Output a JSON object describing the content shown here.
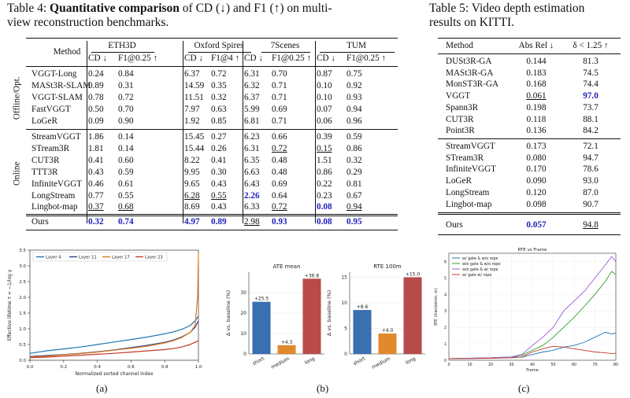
{
  "table4": {
    "caption_prefix": "Table 4: ",
    "caption_bold": "Quantitative comparison",
    "caption_rest_1": " of CD (↓) and F1 (↑) on multi-",
    "caption_rest_2": "view reconstruction benchmarks.",
    "method_header": "Method",
    "datasets": [
      "ETH3D",
      "Oxford Spires",
      "7Scenes",
      "TUM"
    ],
    "metric_cd": "CD ↓",
    "metric_f1": [
      "F1@0.25 ↑",
      "F1@4 ↑",
      "F1@0.25 ↑",
      "F1@0.25 ↑"
    ],
    "group_offline": "Offline/Opt.",
    "group_online": "Online",
    "offline_rows": [
      {
        "name": "VGGT-Long",
        "vals": [
          "0.24",
          "0.84",
          "6.37",
          "0.72",
          "6.31",
          "0.70",
          "0.87",
          "0.75"
        ]
      },
      {
        "name": "MASt3R-SLAM",
        "vals": [
          "0.89",
          "0.31",
          "14.59",
          "0.35",
          "6.32",
          "0.71",
          "0.10",
          "0.92"
        ]
      },
      {
        "name": "VGGT-SLAM",
        "vals": [
          "0.78",
          "0.72",
          "11.51",
          "0.32",
          "6.37",
          "0.71",
          "0.10",
          "0.93"
        ]
      },
      {
        "name": "FastVGGT",
        "vals": [
          "0.50",
          "0.70",
          "7.97",
          "0.63",
          "5.99",
          "0.69",
          "0.07",
          "0.94"
        ]
      },
      {
        "name": "LoGeR",
        "vals": [
          "0.09",
          "0.90",
          "1.92",
          "0.85",
          "6.81",
          "0.71",
          "0.06",
          "0.96"
        ]
      }
    ],
    "online_rows": [
      {
        "name": "StreamVGGT",
        "vals": [
          "1.86",
          "0.14",
          "15.45",
          "0.27",
          "6.23",
          "0.66",
          "0.39",
          "0.59"
        ]
      },
      {
        "name": "STream3R",
        "vals": [
          "1.81",
          "0.14",
          "15.44",
          "0.26",
          "6.31",
          "0.72",
          "0.15",
          "0.86"
        ]
      },
      {
        "name": "CUT3R",
        "vals": [
          "0.41",
          "0.60",
          "8.22",
          "0.41",
          "6.35",
          "0.48",
          "1.51",
          "0.32"
        ]
      },
      {
        "name": "TTT3R",
        "vals": [
          "0.43",
          "0.59",
          "9.95",
          "0.30",
          "6.63",
          "0.48",
          "0.86",
          "0.29"
        ]
      },
      {
        "name": "InfiniteVGGT",
        "vals": [
          "0.46",
          "0.61",
          "9.65",
          "0.43",
          "6.43",
          "0.69",
          "0.22",
          "0.81"
        ]
      },
      {
        "name": "LongStream",
        "vals": [
          "0.77",
          "0.55",
          "6.28",
          "0.55",
          "2.26",
          "0.64",
          "0.23",
          "0.67"
        ]
      },
      {
        "name": "Lingbot-map",
        "vals": [
          "0.37",
          "0.68",
          "8.69",
          "0.43",
          "6.33",
          "0.72",
          "0.08",
          "0.94"
        ]
      }
    ],
    "ours_row": {
      "name": "Ours",
      "vals": [
        "0.32",
        "0.74",
        "4.97",
        "0.89",
        "2.98",
        "0.93",
        "0.08",
        "0.95"
      ]
    }
  },
  "table5": {
    "caption_1": "Table 5: Video depth estimation",
    "caption_2": "results on KITTI.",
    "header": [
      "Method",
      "Abs Rel ↓",
      "δ < 1.25 ↑"
    ],
    "rows_a": [
      [
        "DUSt3R-GA",
        "0.144",
        "81.3"
      ],
      [
        "MASt3R-GA",
        "0.183",
        "74.5"
      ],
      [
        "MonST3R-GA",
        "0.168",
        "74.4"
      ],
      [
        "VGGT",
        "0.061",
        "97.0"
      ],
      [
        "Spann3R",
        "0.198",
        "73.7"
      ],
      [
        "CUT3R",
        "0.118",
        "88.1"
      ],
      [
        "Point3R",
        "0.136",
        "84.2"
      ]
    ],
    "rows_b": [
      [
        "StreamVGGT",
        "0.173",
        "72.1"
      ],
      [
        "STream3R",
        "0.080",
        "94.7"
      ],
      [
        "InfiniteVGGT",
        "0.170",
        "78.6"
      ],
      [
        "LoGeR",
        "0.090",
        "93.0"
      ],
      [
        "LongStream",
        "0.120",
        "87.0"
      ],
      [
        "Lingbot-map",
        "0.098",
        "90.7"
      ]
    ],
    "ours": [
      "Ours",
      "0.057",
      "94.8"
    ]
  },
  "panel_labels": [
    "(a)",
    "(b)",
    "(c)"
  ],
  "chart_data": [
    {
      "type": "line",
      "xlabel": "Normalized sorted channel index",
      "ylabel": "Effective lifetime τ = −1/log γ",
      "xlim": [
        0,
        1.0
      ],
      "ylim": [
        0,
        3.5
      ],
      "xticks": [
        "0.0",
        "0.2",
        "0.4",
        "0.6",
        "0.8",
        "1.0"
      ],
      "yticks": [
        "0.0",
        "0.5",
        "1.0",
        "1.5",
        "2.0",
        "2.5",
        "3.0",
        "3.5"
      ],
      "legend_position": "top-left",
      "series": [
        {
          "name": "Layer 4",
          "color": "#1f77b4",
          "x": [
            0,
            0.1,
            0.2,
            0.3,
            0.4,
            0.5,
            0.6,
            0.7,
            0.8,
            0.85,
            0.9,
            0.95,
            0.98,
            1.0
          ],
          "y": [
            0.22,
            0.3,
            0.36,
            0.42,
            0.5,
            0.58,
            0.66,
            0.74,
            0.84,
            0.9,
            0.98,
            1.1,
            1.25,
            1.4
          ]
        },
        {
          "name": "Layer 11",
          "color": "#2a3f8f",
          "x": [
            0,
            0.1,
            0.2,
            0.3,
            0.4,
            0.5,
            0.6,
            0.7,
            0.8,
            0.85,
            0.9,
            0.95,
            0.98,
            1.0
          ],
          "y": [
            0.12,
            0.15,
            0.18,
            0.22,
            0.27,
            0.33,
            0.4,
            0.48,
            0.57,
            0.64,
            0.74,
            0.88,
            1.05,
            1.25
          ]
        },
        {
          "name": "Layer 17",
          "color": "#e07b1a",
          "x": [
            0,
            0.1,
            0.2,
            0.3,
            0.4,
            0.5,
            0.6,
            0.7,
            0.8,
            0.85,
            0.9,
            0.95,
            0.98,
            0.995,
            1.0
          ],
          "y": [
            0.1,
            0.13,
            0.17,
            0.21,
            0.26,
            0.32,
            0.38,
            0.45,
            0.55,
            0.62,
            0.72,
            0.88,
            1.1,
            2.0,
            3.4
          ]
        },
        {
          "name": "Layer 23",
          "color": "#c0392b",
          "x": [
            0,
            0.1,
            0.2,
            0.3,
            0.4,
            0.5,
            0.6,
            0.7,
            0.8,
            0.85,
            0.9,
            0.95,
            1.0
          ],
          "y": [
            0.08,
            0.1,
            0.13,
            0.16,
            0.19,
            0.22,
            0.26,
            0.3,
            0.34,
            0.37,
            0.42,
            0.5,
            0.62
          ]
        }
      ]
    },
    {
      "type": "bar",
      "title": "ATE mean",
      "ylabel": "Δ vs. baseline (%)",
      "categories": [
        "short",
        "medium",
        "long"
      ],
      "values": [
        25.5,
        4.3,
        36.8
      ],
      "value_labels": [
        "+25.5",
        "+4.3",
        "+36.8"
      ],
      "colors": [
        "#3a6fb0",
        "#e08a2e",
        "#b84a4a"
      ],
      "ylim": [
        0,
        40
      ],
      "yticks": [
        "0",
        "10",
        "20",
        "30"
      ]
    },
    {
      "type": "bar",
      "title": "RTE 100m",
      "ylabel": "Δ vs. baseline (%)",
      "categories": [
        "short",
        "medium",
        "long"
      ],
      "values": [
        8.6,
        4.0,
        15.0
      ],
      "value_labels": [
        "+8.6",
        "+4.0",
        "+15.0"
      ],
      "colors": [
        "#3a6fb0",
        "#e08a2e",
        "#b84a4a"
      ],
      "ylim": [
        0,
        16
      ],
      "yticks": [
        "0",
        "5",
        "10",
        "15"
      ]
    },
    {
      "type": "line",
      "title": "RTE vs Frame",
      "xlabel": "Frame",
      "ylabel": "RTE (translation, m)",
      "xlim": [
        0,
        80
      ],
      "ylim": [
        0,
        6.5
      ],
      "xticks": [
        "0",
        "10",
        "20",
        "30",
        "40",
        "50",
        "60",
        "70",
        "80"
      ],
      "yticks": [
        "0",
        "1",
        "2",
        "3",
        "4",
        "5",
        "6"
      ],
      "legend_position": "top-left",
      "series": [
        {
          "name": "w/ gate & w/o rope",
          "color": "#1f77b4",
          "x": [
            0,
            10,
            20,
            30,
            35,
            40,
            45,
            50,
            55,
            60,
            65,
            70,
            75,
            78,
            80
          ],
          "y": [
            0.1,
            0.12,
            0.15,
            0.2,
            0.18,
            0.35,
            0.5,
            0.6,
            0.8,
            0.9,
            1.1,
            1.4,
            1.7,
            1.6,
            1.65
          ]
        },
        {
          "name": "w/o gate & w/o rope",
          "color": "#2ca02c",
          "x": [
            0,
            10,
            20,
            30,
            35,
            40,
            45,
            50,
            55,
            60,
            65,
            70,
            75,
            78,
            80
          ],
          "y": [
            0.1,
            0.12,
            0.15,
            0.2,
            0.3,
            0.6,
            0.9,
            1.4,
            2.0,
            2.6,
            3.3,
            4.0,
            4.8,
            5.4,
            5.2
          ]
        },
        {
          "name": "w/o gate & w/ rope",
          "color": "#9b59d6",
          "x": [
            0,
            10,
            20,
            30,
            35,
            40,
            45,
            50,
            55,
            60,
            65,
            70,
            75,
            78,
            80
          ],
          "y": [
            0.1,
            0.12,
            0.15,
            0.2,
            0.35,
            0.9,
            1.4,
            2.0,
            3.0,
            3.6,
            4.2,
            5.0,
            5.8,
            6.3,
            6.0
          ]
        },
        {
          "name": "w/ gate w/ rope",
          "color": "#c0392b",
          "x": [
            0,
            10,
            20,
            30,
            35,
            40,
            45,
            50,
            55,
            60,
            65,
            70,
            75,
            78,
            80
          ],
          "y": [
            0.1,
            0.1,
            0.12,
            0.15,
            0.2,
            0.5,
            0.7,
            0.85,
            0.8,
            0.7,
            0.6,
            0.5,
            0.45,
            0.4,
            0.42
          ]
        }
      ]
    }
  ]
}
